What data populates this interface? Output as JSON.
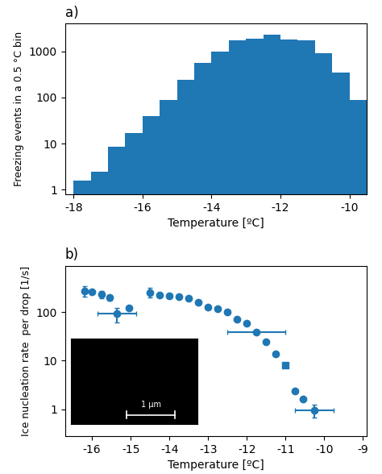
{
  "chart_data": [
    {
      "type": "histogram",
      "title": "a)",
      "x_label": "Temperature [ºC]",
      "y_label": "Freezing events in a 0.5 °C bin",
      "bins": [
        -18.0,
        -17.5,
        -17.0,
        -16.5,
        -16.0,
        -15.5,
        -15.0,
        -14.5,
        -14.0,
        -13.5,
        -13.0,
        -12.5,
        -12.0,
        -11.5,
        -11.0,
        -10.5,
        -10.0,
        -9.5
      ],
      "values": [
        1.6,
        2.5,
        8.5,
        17.0,
        40.0,
        88.0,
        245.0,
        570.0,
        1000.0,
        1750.0,
        1900.0,
        2300.0,
        1800.0,
        1750.0,
        900.0,
        350.0,
        90.0
      ],
      "xlim": [
        -18.25,
        -9.5
      ],
      "xticks": [
        -18,
        -16,
        -14,
        -12,
        -10
      ],
      "ylim": [
        0.8,
        4000
      ],
      "yticks": [
        1,
        10,
        100,
        1000
      ],
      "log": "y",
      "grid": false
    },
    {
      "type": "scatter",
      "title": "b)",
      "x_label": "Temperature [ºC]",
      "y_label": "Ice nucleation rate  per drop [1/s]",
      "x": [
        -16.2,
        -16.0,
        -15.75,
        -15.55,
        -15.35,
        -15.05,
        -14.5,
        -14.25,
        -14.0,
        -13.75,
        -13.5,
        -13.25,
        -13.0,
        -12.75,
        -12.5,
        -12.25,
        -12.0,
        -11.75,
        -11.5,
        -11.25,
        -11.0,
        -10.75,
        -10.55,
        -10.25
      ],
      "values": [
        275,
        265,
        230,
        200,
        92,
        120,
        255,
        228,
        218,
        208,
        195,
        160,
        128,
        118,
        100,
        72,
        58,
        38,
        24,
        14,
        8,
        2.4,
        1.65,
        0.95
      ],
      "x_error": [
        0.0,
        0.0,
        0.0,
        0.0,
        0.5,
        0.0,
        0.0,
        0.0,
        0.0,
        0.0,
        0.0,
        0.0,
        0.0,
        0.0,
        0.0,
        0.0,
        0.0,
        0.75,
        0.0,
        0.0,
        0.0,
        0.0,
        0.0,
        0.5
      ],
      "y_error": {
        "lower": [
          65,
          0,
          38,
          28,
          30,
          0,
          55,
          0,
          28,
          0,
          0,
          0,
          0,
          0,
          0,
          0,
          0,
          0,
          0,
          0,
          0,
          0,
          0,
          0.27
        ],
        "upper": [
          65,
          0,
          38,
          28,
          30,
          0,
          55,
          0,
          28,
          0,
          0,
          0,
          0,
          0,
          0,
          0,
          0,
          0,
          0,
          0,
          0,
          0,
          0,
          0.27
        ]
      },
      "marker": [
        "o",
        "o",
        "o",
        "o",
        "o",
        "o",
        "o",
        "o",
        "o",
        "o",
        "o",
        "o",
        "o",
        "o",
        "o",
        "o",
        "o",
        "o",
        "o",
        "o",
        "s",
        "o",
        "o",
        "o"
      ],
      "xlim": [
        -16.7,
        -8.9
      ],
      "xticks": [
        -16,
        -15,
        -14,
        -13,
        -12,
        -11,
        -10,
        -9
      ],
      "ylim": [
        0.28,
        900
      ],
      "yticks": [
        1,
        10,
        100
      ],
      "log": "y",
      "grid": false,
      "annotations": [
        "1 μm"
      ]
    }
  ]
}
